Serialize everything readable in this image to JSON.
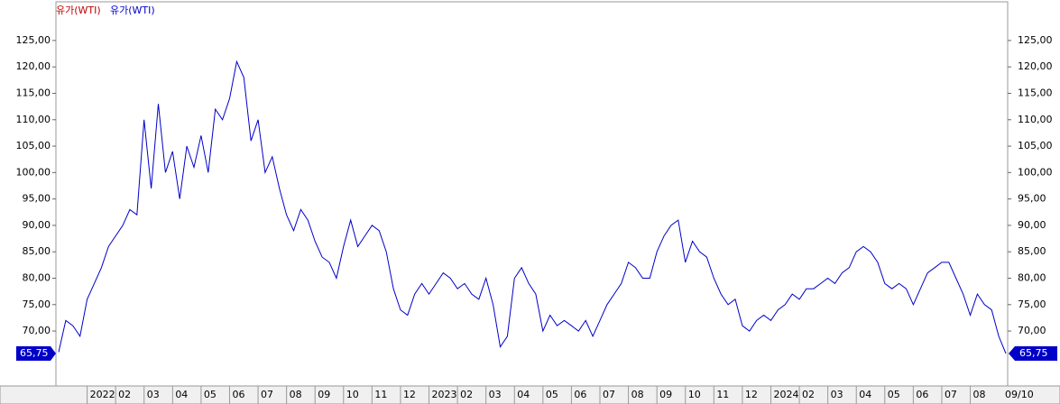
{
  "chart_data": {
    "type": "line",
    "legend_entries": [
      {
        "text": "유가(WTI)",
        "color": "#c00000"
      },
      {
        "text": "유가(WTI)",
        "color": "#0000c8"
      }
    ],
    "categories": [
      null,
      null,
      null,
      null,
      "2022",
      null,
      null,
      null,
      "02",
      null,
      null,
      null,
      "03",
      null,
      null,
      null,
      "04",
      null,
      null,
      null,
      "05",
      null,
      null,
      null,
      "06",
      null,
      null,
      null,
      "07",
      null,
      null,
      null,
      "08",
      null,
      null,
      null,
      "09",
      null,
      null,
      null,
      "10",
      null,
      null,
      null,
      "11",
      null,
      null,
      null,
      "12",
      null,
      null,
      null,
      "2023",
      null,
      null,
      null,
      "02",
      null,
      null,
      null,
      "03",
      null,
      null,
      null,
      "04",
      null,
      null,
      null,
      "05",
      null,
      null,
      null,
      "06",
      null,
      null,
      null,
      "07",
      null,
      null,
      null,
      "08",
      null,
      null,
      null,
      "09",
      null,
      null,
      null,
      "10",
      null,
      null,
      null,
      "11",
      null,
      null,
      null,
      "12",
      null,
      null,
      null,
      "2024",
      null,
      null,
      null,
      "02",
      null,
      null,
      null,
      "03",
      null,
      null,
      null,
      "04",
      null,
      null,
      null,
      "05",
      null,
      null,
      null,
      "06",
      null,
      null,
      null,
      "07",
      null,
      null,
      null,
      "08",
      null,
      null,
      null,
      null,
      "09/10"
    ],
    "series": [
      {
        "color": "#0000c8",
        "values": [
          66,
          72,
          71,
          69,
          76,
          79,
          82,
          86,
          88,
          90,
          93,
          92,
          110,
          97,
          113,
          100,
          104,
          95,
          105,
          101,
          107,
          100,
          112,
          110,
          114,
          121,
          118,
          106,
          110,
          100,
          103,
          97,
          92,
          89,
          93,
          91,
          87,
          84,
          83,
          80,
          86,
          91,
          86,
          88,
          90,
          89,
          85,
          78,
          74,
          73,
          77,
          79,
          77,
          79,
          81,
          80,
          78,
          79,
          77,
          76,
          80,
          75,
          67,
          69,
          80,
          82,
          79,
          77,
          70,
          73,
          71,
          72,
          71,
          70,
          72,
          69,
          72,
          75,
          77,
          79,
          83,
          82,
          80,
          80,
          85,
          88,
          90,
          91,
          83,
          87,
          85,
          84,
          80,
          77,
          75,
          76,
          71,
          70,
          72,
          73,
          72,
          74,
          75,
          77,
          76,
          78,
          78,
          79,
          80,
          79,
          81,
          82,
          85,
          86,
          85,
          83,
          79,
          78,
          79,
          78,
          75,
          78,
          81,
          82,
          83,
          83,
          80,
          77,
          73,
          77,
          75,
          74,
          69,
          65.75
        ]
      }
    ],
    "last_value_label": "65,75",
    "ylim": [
      59.6,
      131.3
    ],
    "yticks": [
      {
        "value": 70,
        "label": "70,00"
      },
      {
        "value": 75,
        "label": "75,00"
      },
      {
        "value": 80,
        "label": "80,00"
      },
      {
        "value": 85,
        "label": "85,00"
      },
      {
        "value": 90,
        "label": "90,00"
      },
      {
        "value": 95,
        "label": "95,00"
      },
      {
        "value": 100,
        "label": "100,00"
      },
      {
        "value": 105,
        "label": "105,00"
      },
      {
        "value": 110,
        "label": "110,00"
      },
      {
        "value": 115,
        "label": "115,00"
      },
      {
        "value": 120,
        "label": "120,00"
      },
      {
        "value": 125,
        "label": "125,00"
      }
    ]
  }
}
